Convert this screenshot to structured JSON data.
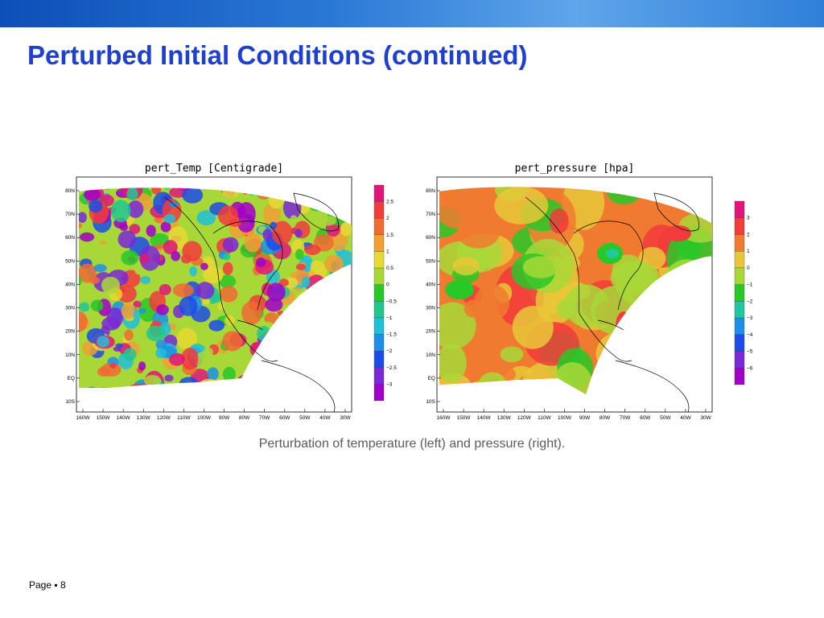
{
  "slide": {
    "title": "Perturbed Initial Conditions (continued)",
    "caption": "Perturbation of temperature (left) and pressure (right).",
    "footer": {
      "page_label": "Page",
      "bullet": "▪",
      "page_number": "8"
    }
  },
  "figures": [
    {
      "title": "pert_Temp [Centigrade]",
      "lat_ticks": [
        "80N",
        "70N",
        "60N",
        "50N",
        "40N",
        "30N",
        "20N",
        "10N",
        "EQ",
        "10S"
      ],
      "lon_ticks": [
        "160W",
        "150W",
        "140W",
        "130W",
        "120W",
        "110W",
        "100W",
        "90W",
        "80W",
        "70W",
        "60W",
        "50W",
        "40W",
        "30W"
      ],
      "colorbar": {
        "labels": [
          "2.5",
          "2",
          "1.5",
          "1",
          "0.5",
          "0",
          "−0.5",
          "−1",
          "−1.5",
          "−2",
          "−2.5",
          "−3"
        ],
        "colors": [
          "#e0157a",
          "#f23b3b",
          "#f06a32",
          "#f0a035",
          "#e8d832",
          "#a8d838",
          "#28c828",
          "#20c890",
          "#20c0d8",
          "#1c90e8",
          "#1c4ce8",
          "#7a28d8",
          "#a000c8"
        ]
      }
    },
    {
      "title": "pert_pressure [hpa]",
      "lat_ticks": [
        "80N",
        "70N",
        "60N",
        "50N",
        "40N",
        "30N",
        "20N",
        "10N",
        "EQ",
        "10S"
      ],
      "lon_ticks": [
        "160W",
        "150W",
        "140W",
        "130W",
        "120W",
        "110W",
        "100W",
        "90W",
        "80W",
        "70W",
        "60W",
        "50W",
        "40W",
        "30W"
      ],
      "colorbar": {
        "labels": [
          "3",
          "2",
          "1",
          "0",
          "−1",
          "−2",
          "−3",
          "−4",
          "−5",
          "−6"
        ],
        "colors": [
          "#e0157a",
          "#f23b3b",
          "#f07a30",
          "#e8c838",
          "#a8d838",
          "#28c828",
          "#20c8a0",
          "#1c90e8",
          "#1c4ce8",
          "#7a28d8",
          "#a000c8"
        ]
      }
    }
  ]
}
